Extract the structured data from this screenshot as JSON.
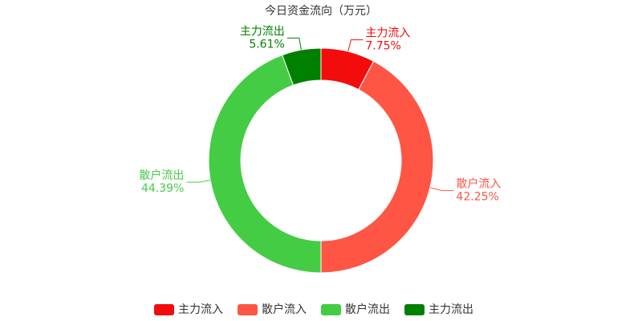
{
  "chart_data": {
    "type": "donut",
    "title": "今日资金流向（万元）",
    "categories": [
      "主力流入",
      "散户流入",
      "散户流出",
      "主力流出"
    ],
    "values": [
      7.75,
      42.25,
      44.39,
      5.61
    ],
    "value_labels": [
      "7.75%",
      "42.25%",
      "44.39%",
      "5.61%"
    ],
    "colors": [
      "#f20c0c",
      "#ff5544",
      "#44cc44",
      "#008000"
    ],
    "legend": "bottom"
  }
}
